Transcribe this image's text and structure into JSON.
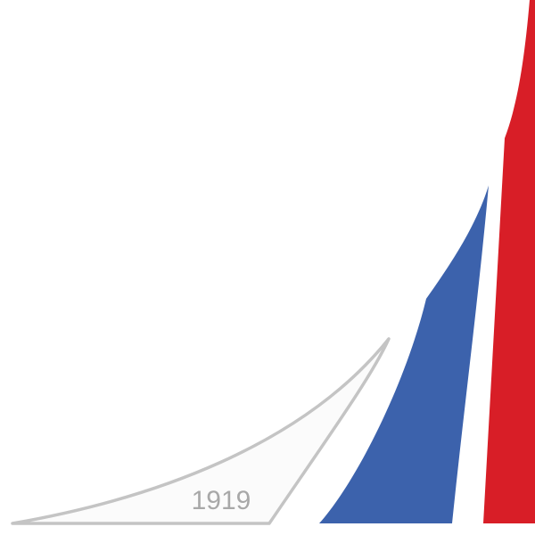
{
  "logo": {
    "year_label": "1919",
    "colors": {
      "outline_sail": "#c4c4c4",
      "outline_sail_fill": "#fbfbfb",
      "year_text": "#a8a8a8",
      "blue_sail": "#3c62ac",
      "red_sail": "#d81e27",
      "background": "#ffffff"
    },
    "shapes": [
      "outline-sail-shape",
      "blue-sail-shape",
      "red-sail-shape"
    ]
  }
}
